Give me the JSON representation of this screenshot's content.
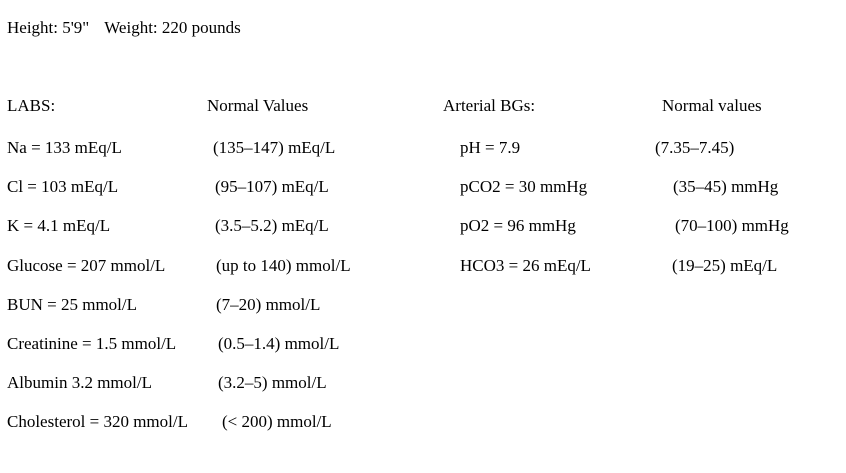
{
  "vitals": {
    "height": "Height: 5'9\"",
    "weight": "Weight: 220 pounds"
  },
  "labs": {
    "header": {
      "title": "LABS:",
      "normal": "Normal Values"
    },
    "rows": [
      {
        "result": "Na = 133 mEq/L",
        "normal": "(135–147) mEq/L"
      },
      {
        "result": "Cl = 103 mEq/L",
        "normal": "(95–107) mEq/L"
      },
      {
        "result": "K = 4.1 mEq/L",
        "normal": "(3.5–5.2) mEq/L"
      },
      {
        "result": "Glucose = 207 mmol/L",
        "normal": "(up to 140) mmol/L"
      },
      {
        "result": "BUN = 25 mmol/L",
        "normal": "(7–20) mmol/L"
      },
      {
        "result": "Creatinine = 1.5 mmol/L",
        "normal": "(0.5–1.4) mmol/L"
      },
      {
        "result": "Albumin 3.2 mmol/L",
        "normal": "(3.2–5) mmol/L"
      },
      {
        "result": "Cholesterol = 320 mmol/L",
        "normal": "(< 200) mmol/L"
      }
    ]
  },
  "arterial_bgs": {
    "header": {
      "title": "Arterial BGs:",
      "normal": "Normal values"
    },
    "rows": [
      {
        "result": "pH = 7.9",
        "normal": "(7.35–7.45)"
      },
      {
        "result": "pCO2 = 30 mmHg",
        "normal": "(35–45) mmHg"
      },
      {
        "result": "pO2 = 96 mmHg",
        "normal": "(70–100) mmHg"
      },
      {
        "result": "HCO3 = 26 mEq/L",
        "normal": "(19–25) mEq/L"
      }
    ]
  },
  "colors": {
    "text": "#000000",
    "background": "#ffffff"
  }
}
